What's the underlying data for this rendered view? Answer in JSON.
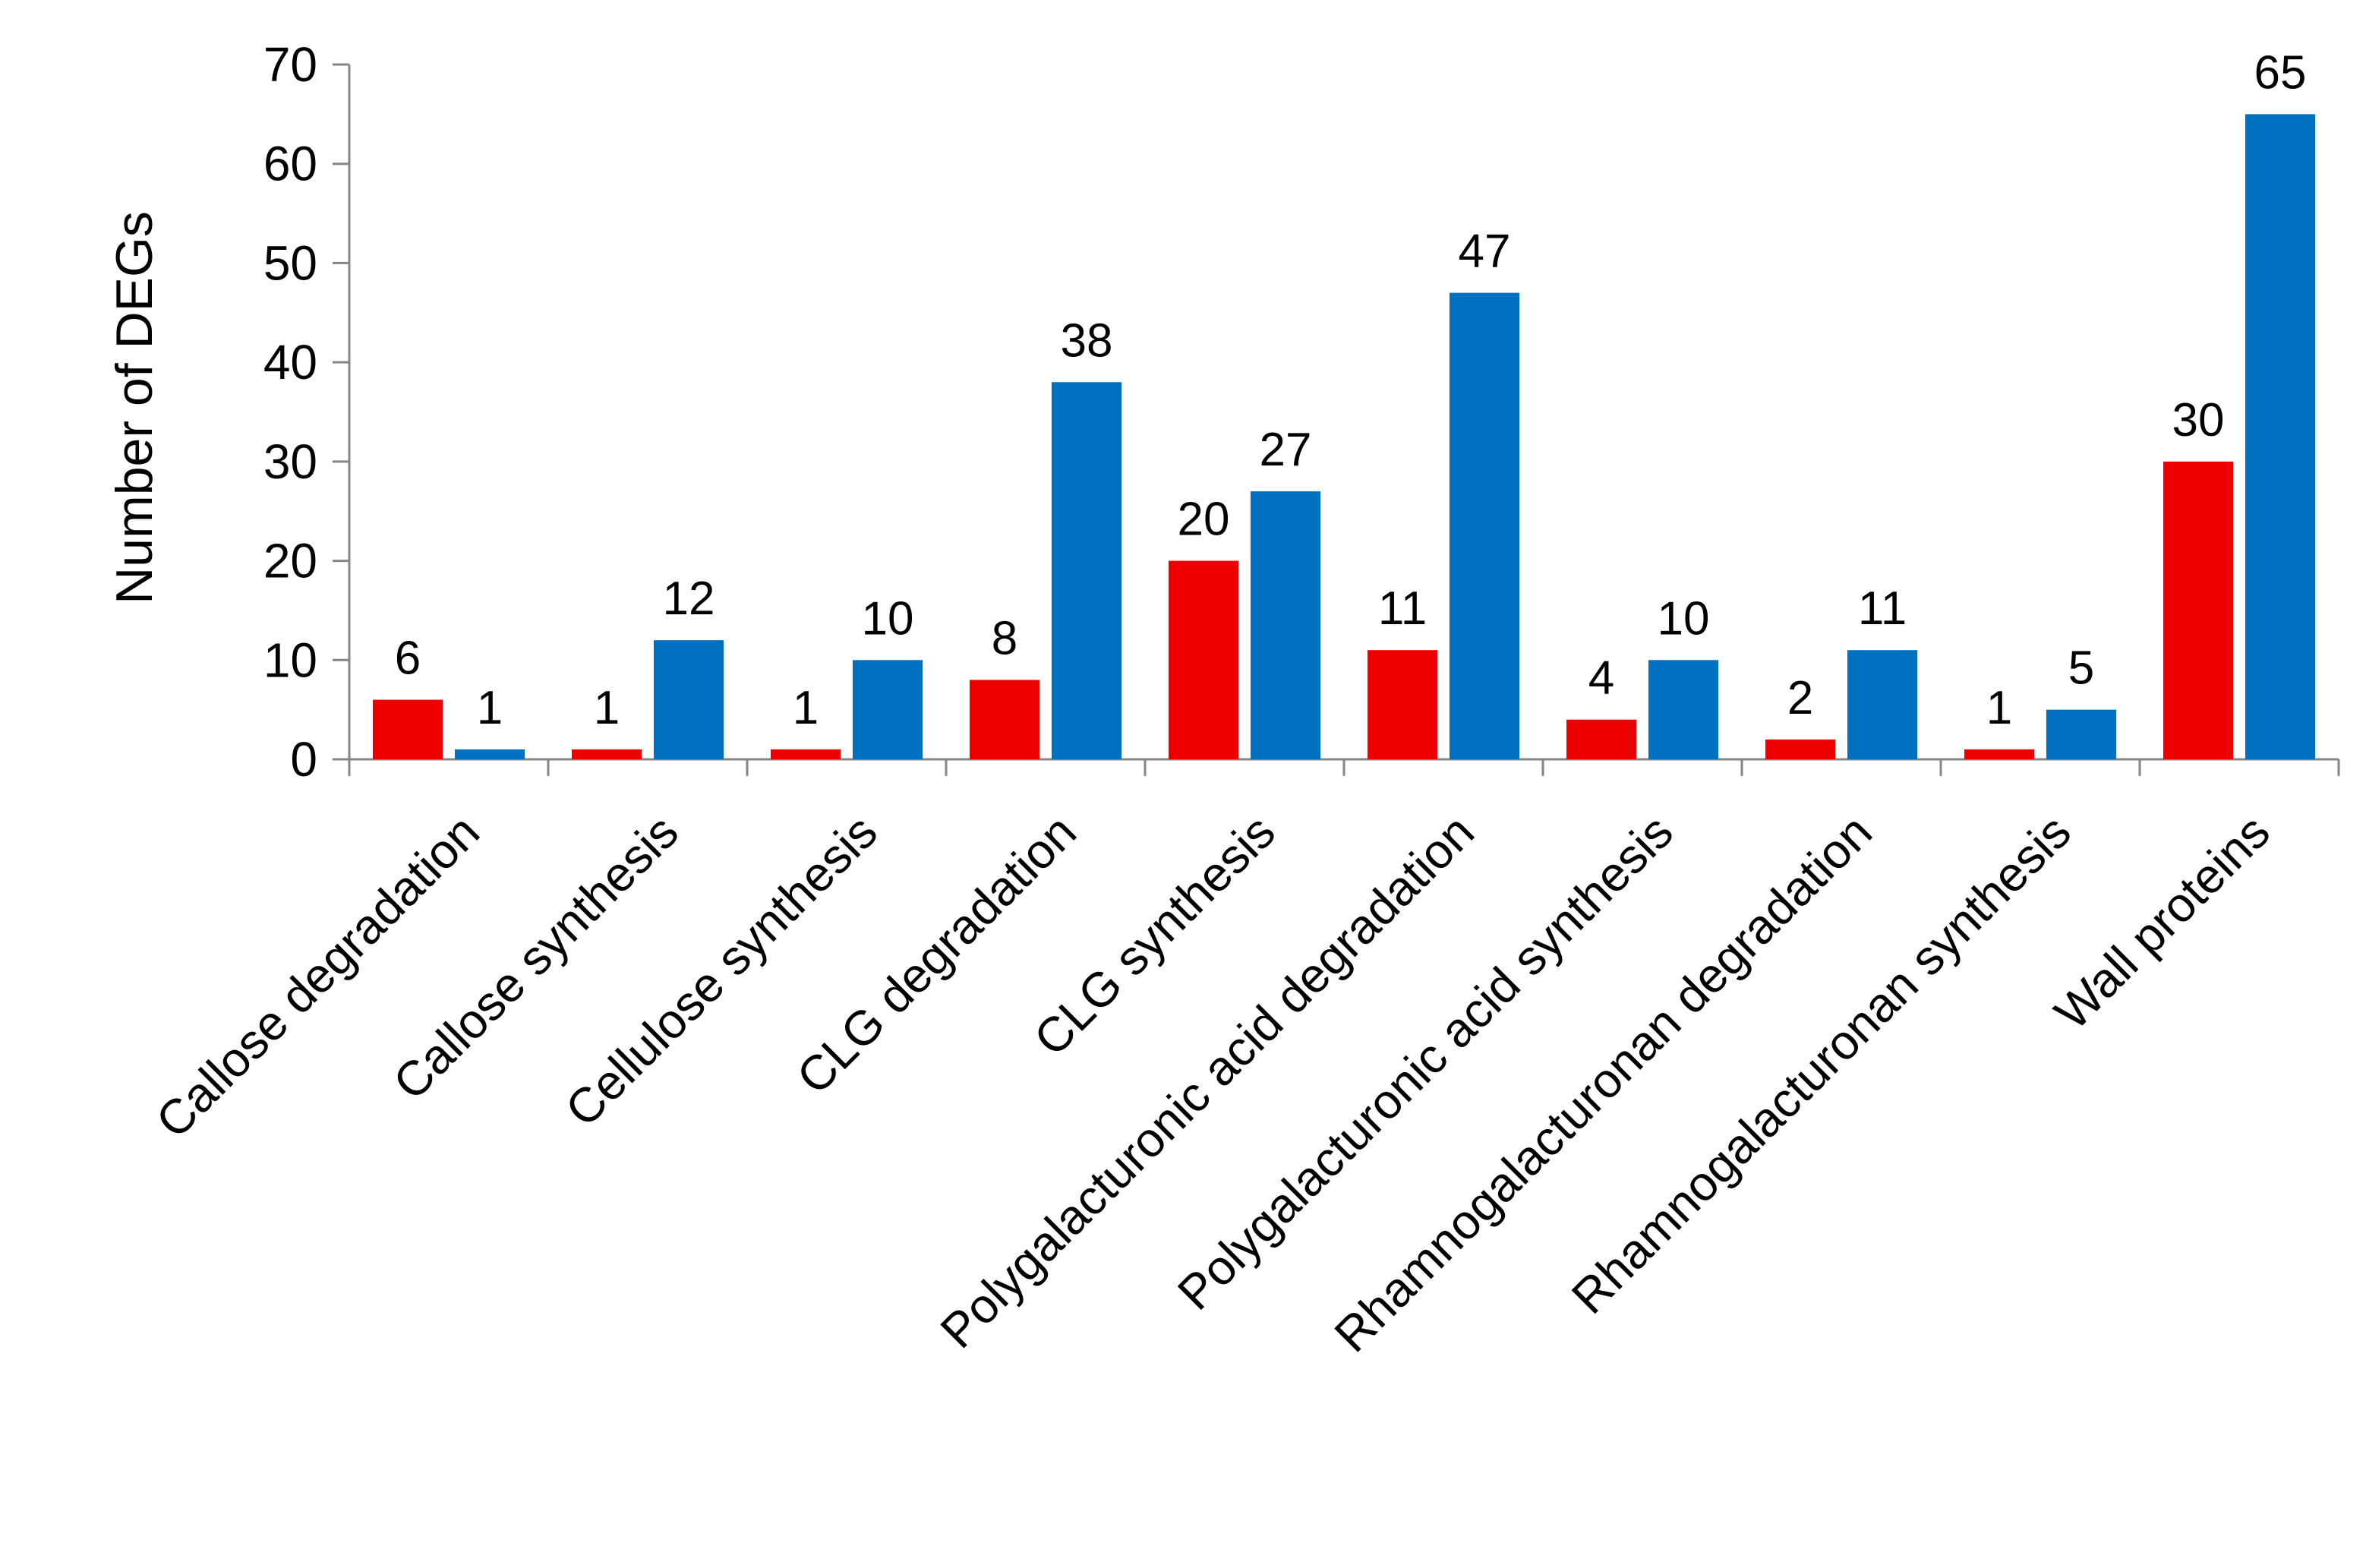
{
  "chart_data": {
    "type": "bar",
    "ylabel": "Number of DEGs",
    "xlabel": "",
    "ylim": [
      0,
      70
    ],
    "yticks": [
      0,
      10,
      20,
      30,
      40,
      50,
      60,
      70
    ],
    "categories": [
      "Callose degradation",
      "Callose synthesis",
      "Cellulose synthesis",
      "CLG degradation",
      "CLG synthesis",
      "Polygalacturonic acid degradation",
      "Polygalacturonic acid synthesis",
      "Rhamnogalacturonan degradation",
      "Rhamnogalacturonan synthesis",
      "Wall proteins"
    ],
    "series": [
      {
        "color": "#ee0000",
        "values": [
          6,
          1,
          1,
          8,
          20,
          11,
          4,
          2,
          1,
          30
        ]
      },
      {
        "color": "#0070c0",
        "values": [
          1,
          12,
          10,
          38,
          27,
          47,
          10,
          11,
          5,
          65
        ]
      }
    ],
    "data_labels": true,
    "grid": false,
    "legend": "none"
  }
}
